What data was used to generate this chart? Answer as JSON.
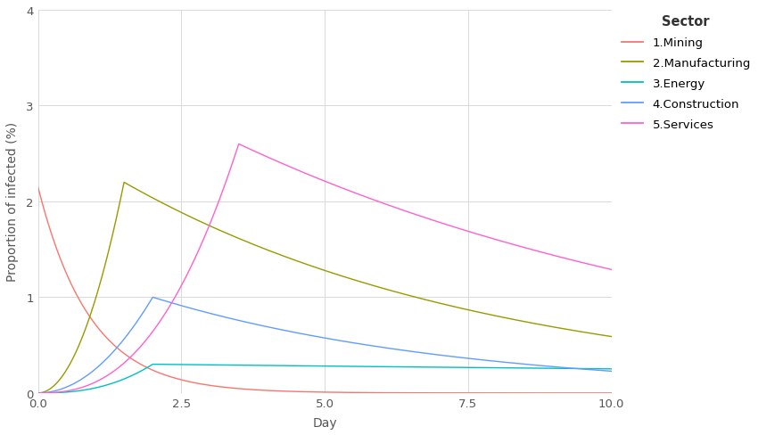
{
  "title": "",
  "xlabel": "Day",
  "ylabel": "Proportion of infected (%)",
  "xlim": [
    0,
    10
  ],
  "ylim": [
    0,
    4
  ],
  "yticks": [
    0,
    1,
    2,
    3,
    4
  ],
  "xticks": [
    0.0,
    2.5,
    5.0,
    7.5,
    10.0
  ],
  "legend_title": "Sector",
  "sectors": [
    {
      "label": "1.Mining",
      "color": "#F8766D"
    },
    {
      "label": "2.Manufacturing",
      "color": "#999900"
    },
    {
      "label": "3.Energy",
      "color": "#00BFC4"
    },
    {
      "label": "4.Construction",
      "color": "#619CFF"
    },
    {
      "label": "5.Services",
      "color": "#FF61CC"
    }
  ],
  "background_color": "#FFFFFF",
  "panel_color": "#FFFFFF",
  "grid_color": "#D9D9D9"
}
